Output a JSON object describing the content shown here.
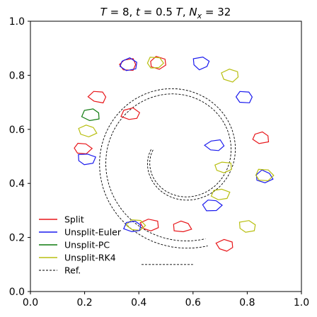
{
  "chart_data": {
    "type": "line",
    "title": "T = 8, t = 0.5 T, N_x = 32",
    "xlabel": "",
    "ylabel": "",
    "xlim": [
      0.0,
      1.0
    ],
    "ylim": [
      0.0,
      1.0
    ],
    "xticks": [
      "0.0",
      "0.2",
      "0.4",
      "0.6",
      "0.8",
      "1.0"
    ],
    "yticks": [
      "0.0",
      "0.2",
      "0.4",
      "0.6",
      "0.8",
      "1.0"
    ],
    "grid": false,
    "legend_position": "lower-left",
    "series": [
      {
        "name": "Split",
        "color": "#e8161a",
        "style": "solid"
      },
      {
        "name": "Unsplit-Euler",
        "color": "#1a1aee",
        "style": "solid"
      },
      {
        "name": "Unsplit-PC",
        "color": "#0f7a0f",
        "style": "solid"
      },
      {
        "name": "Unsplit-RK4",
        "color": "#b8bf10",
        "style": "solid"
      },
      {
        "name": "Ref.",
        "color": "#000000",
        "style": "dashed"
      }
    ],
    "reference_spiral": {
      "inner_end": [
        0.43,
        0.42
      ],
      "outer_end": [
        0.41,
        0.1
      ],
      "description_points": "see markers"
    },
    "markers": [
      {
        "series": "Split",
        "center": [
          0.36,
          0.84
        ]
      },
      {
        "series": "Unsplit-Euler",
        "center": [
          0.36,
          0.84
        ]
      },
      {
        "series": "Split",
        "center": [
          0.47,
          0.845
        ]
      },
      {
        "series": "Unsplit-RK4",
        "center": [
          0.46,
          0.845
        ]
      },
      {
        "series": "Unsplit-Euler",
        "center": [
          0.63,
          0.845
        ]
      },
      {
        "series": "Unsplit-RK4",
        "center": [
          0.74,
          0.8
        ]
      },
      {
        "series": "Unsplit-Euler",
        "center": [
          0.79,
          0.72
        ]
      },
      {
        "series": "Split",
        "center": [
          0.85,
          0.57
        ]
      },
      {
        "series": "Unsplit-Euler",
        "center": [
          0.86,
          0.425
        ]
      },
      {
        "series": "Unsplit-RK4",
        "center": [
          0.86,
          0.43
        ]
      },
      {
        "series": "Unsplit-RK4",
        "center": [
          0.8,
          0.24
        ]
      },
      {
        "series": "Split",
        "center": [
          0.72,
          0.17
        ]
      },
      {
        "series": "Split",
        "center": [
          0.25,
          0.72
        ]
      },
      {
        "series": "Unsplit-PC",
        "center": [
          0.225,
          0.655
        ]
      },
      {
        "series": "Unsplit-RK4",
        "center": [
          0.21,
          0.595
        ]
      },
      {
        "series": "Split",
        "center": [
          0.19,
          0.53
        ]
      },
      {
        "series": "Unsplit-Euler",
        "center": [
          0.205,
          0.49
        ]
      },
      {
        "series": "Split",
        "center": [
          0.44,
          0.245
        ]
      },
      {
        "series": "Unsplit-RK4",
        "center": [
          0.39,
          0.245
        ]
      },
      {
        "series": "Unsplit-Euler",
        "center": [
          0.38,
          0.24
        ]
      },
      {
        "series": "Split",
        "center": [
          0.56,
          0.24
        ]
      },
      {
        "series": "Unsplit-Euler",
        "center": [
          0.67,
          0.32
        ]
      },
      {
        "series": "Unsplit-RK4",
        "center": [
          0.7,
          0.36
        ]
      },
      {
        "series": "Unsplit-RK4",
        "center": [
          0.71,
          0.46
        ]
      },
      {
        "series": "Unsplit-Euler",
        "center": [
          0.68,
          0.54
        ]
      },
      {
        "series": "Split",
        "center": [
          0.37,
          0.655
        ]
      }
    ]
  }
}
